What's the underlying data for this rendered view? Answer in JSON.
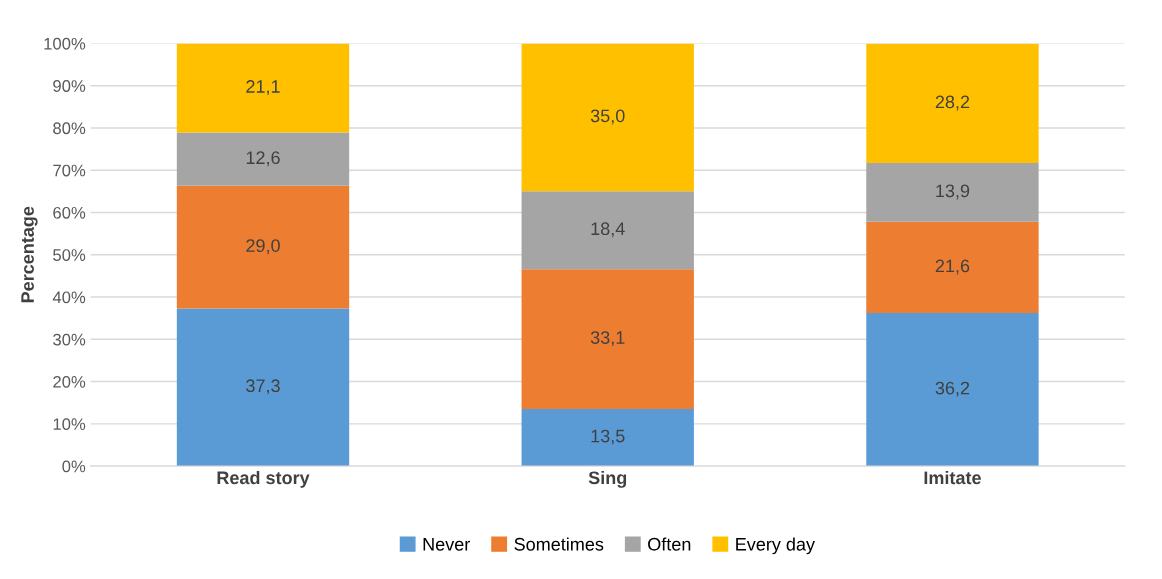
{
  "chart_data": {
    "type": "bar",
    "stacked": true,
    "ylabel": "Percentage",
    "categories": [
      "Read story",
      "Sing",
      "Imitate"
    ],
    "series": [
      {
        "name": "Never",
        "color": "#5b9bd5",
        "values": [
          37.3,
          13.5,
          36.2
        ],
        "value_labels": [
          "37,3",
          "13,5",
          "36,2"
        ]
      },
      {
        "name": "Sometimes",
        "color": "#ed7d31",
        "values": [
          29.0,
          33.1,
          21.6
        ],
        "value_labels": [
          "29,0",
          "33,1",
          "21,6"
        ]
      },
      {
        "name": "Often",
        "color": "#a5a5a5",
        "values": [
          12.6,
          18.4,
          13.9
        ],
        "value_labels": [
          "12,6",
          "18,4",
          "13,9"
        ]
      },
      {
        "name": "Every day",
        "color": "#ffc000",
        "values": [
          21.1,
          35.0,
          28.2
        ],
        "value_labels": [
          "21,1",
          "35,0",
          "28,2"
        ]
      }
    ],
    "ylim": [
      0,
      100
    ],
    "yticks": [
      {
        "value": 0,
        "label": "0%"
      },
      {
        "value": 10,
        "label": "10%"
      },
      {
        "value": 20,
        "label": "20%"
      },
      {
        "value": 30,
        "label": "30%"
      },
      {
        "value": 40,
        "label": "40%"
      },
      {
        "value": 50,
        "label": "50%"
      },
      {
        "value": 60,
        "label": "60%"
      },
      {
        "value": 70,
        "label": "70%"
      },
      {
        "value": 80,
        "label": "80%"
      },
      {
        "value": 90,
        "label": "90%"
      },
      {
        "value": 100,
        "label": "100%"
      }
    ],
    "grid": "y",
    "legend": "bottom"
  }
}
